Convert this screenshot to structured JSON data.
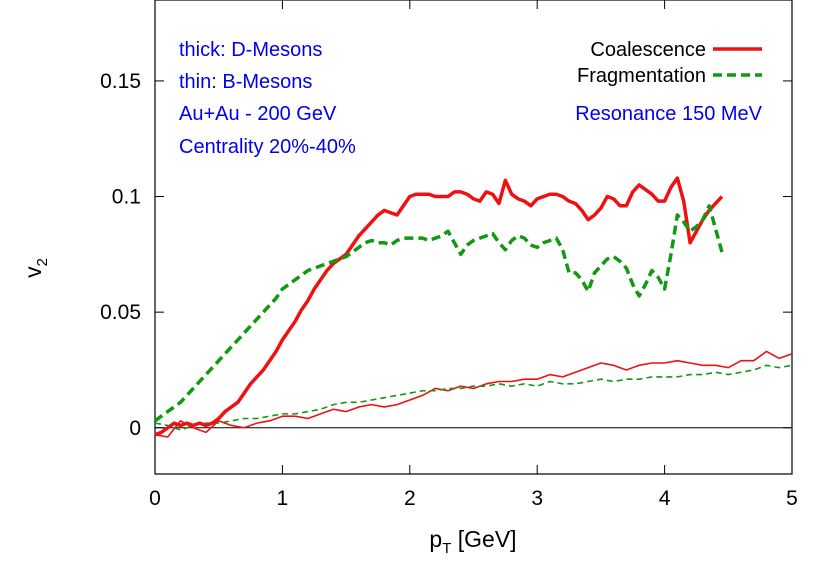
{
  "chart_data": {
    "type": "line",
    "xlabel": {
      "main": "p",
      "sub": "T",
      "unit": " [GeV]"
    },
    "ylabel": {
      "main": "v",
      "sub": "2"
    },
    "xlim": [
      0,
      5
    ],
    "ylim": [
      -0.02,
      0.185
    ],
    "x_ticks": [
      "0",
      "1",
      "2",
      "3",
      "4",
      "5"
    ],
    "y_ticks": [
      "0",
      "0.05",
      "0.1",
      "0.15"
    ],
    "x_tick_values": [
      0,
      1,
      2,
      3,
      4,
      5
    ],
    "y_tick_values": [
      0,
      0.05,
      0.1,
      0.15
    ],
    "grid": false,
    "zero_line": true,
    "legend_position": "top-right",
    "annotations": [
      "thick: D-Mesons",
      "thin: B-Mesons",
      "Au+Au - 200 GeV",
      "Centrality 20%-40%"
    ],
    "annotation_right": "Resonance 150 MeV",
    "series": [
      {
        "name": "Coalescence",
        "color": "#ee1111",
        "style": "solid",
        "weight": "thick",
        "x": [
          0.0,
          0.05,
          0.1,
          0.15,
          0.2,
          0.25,
          0.3,
          0.35,
          0.4,
          0.45,
          0.5,
          0.55,
          0.6,
          0.65,
          0.7,
          0.75,
          0.8,
          0.85,
          0.9,
          0.95,
          1.0,
          1.05,
          1.1,
          1.15,
          1.2,
          1.25,
          1.3,
          1.35,
          1.4,
          1.45,
          1.5,
          1.55,
          1.6,
          1.65,
          1.7,
          1.75,
          1.8,
          1.85,
          1.9,
          1.95,
          2.0,
          2.05,
          2.1,
          2.15,
          2.2,
          2.25,
          2.3,
          2.35,
          2.4,
          2.45,
          2.5,
          2.55,
          2.6,
          2.65,
          2.7,
          2.75,
          2.8,
          2.85,
          2.9,
          2.95,
          3.0,
          3.05,
          3.1,
          3.15,
          3.2,
          3.25,
          3.3,
          3.35,
          3.4,
          3.45,
          3.5,
          3.55,
          3.6,
          3.65,
          3.7,
          3.75,
          3.8,
          3.85,
          3.9,
          3.95,
          4.0,
          4.05,
          4.1,
          4.15,
          4.2,
          4.25,
          4.3,
          4.35,
          4.4,
          4.45
        ],
        "y": [
          -0.003,
          -0.002,
          0.0,
          0.002,
          0.001,
          0.002,
          0.001,
          0.002,
          0.001,
          0.002,
          0.004,
          0.007,
          0.009,
          0.011,
          0.015,
          0.019,
          0.022,
          0.025,
          0.029,
          0.033,
          0.038,
          0.042,
          0.046,
          0.051,
          0.055,
          0.06,
          0.064,
          0.068,
          0.071,
          0.073,
          0.075,
          0.079,
          0.083,
          0.086,
          0.089,
          0.092,
          0.094,
          0.093,
          0.092,
          0.096,
          0.1,
          0.101,
          0.101,
          0.101,
          0.1,
          0.1,
          0.1,
          0.102,
          0.102,
          0.101,
          0.099,
          0.098,
          0.102,
          0.101,
          0.097,
          0.107,
          0.101,
          0.099,
          0.098,
          0.096,
          0.099,
          0.1,
          0.101,
          0.101,
          0.1,
          0.098,
          0.097,
          0.094,
          0.09,
          0.092,
          0.095,
          0.1,
          0.099,
          0.096,
          0.096,
          0.102,
          0.105,
          0.103,
          0.101,
          0.098,
          0.098,
          0.104,
          0.108,
          0.098,
          0.08,
          0.085,
          0.09,
          0.094,
          0.097,
          0.1
        ]
      },
      {
        "name": "Fragmentation",
        "color": "#119911",
        "style": "dashed",
        "weight": "thick",
        "x": [
          0.0,
          0.05,
          0.1,
          0.15,
          0.2,
          0.25,
          0.3,
          0.35,
          0.4,
          0.45,
          0.5,
          0.55,
          0.6,
          0.65,
          0.7,
          0.75,
          0.8,
          0.85,
          0.9,
          0.95,
          1.0,
          1.05,
          1.1,
          1.15,
          1.2,
          1.25,
          1.3,
          1.35,
          1.4,
          1.45,
          1.5,
          1.55,
          1.6,
          1.65,
          1.7,
          1.75,
          1.8,
          1.85,
          1.9,
          1.95,
          2.0,
          2.05,
          2.1,
          2.15,
          2.2,
          2.25,
          2.3,
          2.35,
          2.4,
          2.45,
          2.5,
          2.55,
          2.6,
          2.65,
          2.7,
          2.75,
          2.8,
          2.85,
          2.9,
          2.95,
          3.0,
          3.05,
          3.1,
          3.15,
          3.2,
          3.25,
          3.3,
          3.35,
          3.4,
          3.45,
          3.5,
          3.55,
          3.6,
          3.65,
          3.7,
          3.75,
          3.8,
          3.85,
          3.9,
          3.95,
          4.0,
          4.05,
          4.1,
          4.15,
          4.2,
          4.25,
          4.3,
          4.35,
          4.4,
          4.45
        ],
        "y": [
          0.003,
          0.005,
          0.007,
          0.009,
          0.011,
          0.014,
          0.017,
          0.02,
          0.023,
          0.026,
          0.029,
          0.032,
          0.035,
          0.038,
          0.041,
          0.044,
          0.047,
          0.05,
          0.053,
          0.056,
          0.06,
          0.062,
          0.064,
          0.066,
          0.068,
          0.069,
          0.07,
          0.071,
          0.072,
          0.073,
          0.074,
          0.076,
          0.078,
          0.08,
          0.081,
          0.08,
          0.08,
          0.079,
          0.081,
          0.082,
          0.082,
          0.082,
          0.082,
          0.081,
          0.082,
          0.083,
          0.085,
          0.08,
          0.075,
          0.079,
          0.081,
          0.082,
          0.083,
          0.084,
          0.08,
          0.077,
          0.081,
          0.083,
          0.082,
          0.079,
          0.078,
          0.08,
          0.081,
          0.082,
          0.077,
          0.067,
          0.067,
          0.064,
          0.059,
          0.067,
          0.07,
          0.073,
          0.074,
          0.072,
          0.069,
          0.062,
          0.057,
          0.062,
          0.068,
          0.065,
          0.06,
          0.075,
          0.092,
          0.089,
          0.085,
          0.087,
          0.09,
          0.096,
          0.086,
          0.076
        ]
      },
      {
        "name": "Coalescence",
        "color": "#ee1111",
        "style": "solid",
        "weight": "thin",
        "x": [
          0.0,
          0.1,
          0.2,
          0.3,
          0.4,
          0.5,
          0.6,
          0.7,
          0.8,
          0.9,
          1.0,
          1.1,
          1.2,
          1.3,
          1.4,
          1.5,
          1.6,
          1.7,
          1.8,
          1.9,
          2.0,
          2.1,
          2.2,
          2.3,
          2.4,
          2.5,
          2.6,
          2.7,
          2.8,
          2.9,
          3.0,
          3.1,
          3.2,
          3.3,
          3.4,
          3.5,
          3.6,
          3.7,
          3.8,
          3.9,
          4.0,
          4.1,
          4.2,
          4.3,
          4.4,
          4.5,
          4.6,
          4.7,
          4.8,
          4.9,
          5.0
        ],
        "y": [
          -0.003,
          -0.004,
          0.003,
          0.0,
          -0.002,
          0.003,
          0.001,
          0.0,
          0.002,
          0.003,
          0.005,
          0.005,
          0.004,
          0.006,
          0.008,
          0.007,
          0.009,
          0.01,
          0.009,
          0.01,
          0.012,
          0.014,
          0.017,
          0.016,
          0.018,
          0.017,
          0.019,
          0.02,
          0.02,
          0.021,
          0.021,
          0.023,
          0.022,
          0.024,
          0.026,
          0.028,
          0.027,
          0.025,
          0.027,
          0.028,
          0.028,
          0.029,
          0.028,
          0.027,
          0.027,
          0.026,
          0.029,
          0.029,
          0.033,
          0.03,
          0.032
        ]
      },
      {
        "name": "Fragmentation",
        "color": "#119911",
        "style": "dashed",
        "weight": "thin",
        "x": [
          0.0,
          0.1,
          0.2,
          0.3,
          0.4,
          0.5,
          0.6,
          0.7,
          0.8,
          0.9,
          1.0,
          1.1,
          1.2,
          1.3,
          1.4,
          1.5,
          1.6,
          1.7,
          1.8,
          1.9,
          2.0,
          2.1,
          2.2,
          2.3,
          2.4,
          2.5,
          2.6,
          2.7,
          2.8,
          2.9,
          3.0,
          3.1,
          3.2,
          3.3,
          3.4,
          3.5,
          3.6,
          3.7,
          3.8,
          3.9,
          4.0,
          4.1,
          4.2,
          4.3,
          4.4,
          4.5,
          4.6,
          4.7,
          4.8,
          4.9,
          5.0
        ],
        "y": [
          0.002,
          0.001,
          -0.001,
          0.001,
          0.002,
          0.002,
          0.003,
          0.004,
          0.004,
          0.005,
          0.006,
          0.006,
          0.007,
          0.008,
          0.01,
          0.011,
          0.011,
          0.012,
          0.013,
          0.014,
          0.015,
          0.016,
          0.016,
          0.017,
          0.017,
          0.018,
          0.018,
          0.019,
          0.018,
          0.019,
          0.018,
          0.02,
          0.019,
          0.019,
          0.02,
          0.021,
          0.02,
          0.021,
          0.021,
          0.022,
          0.022,
          0.022,
          0.023,
          0.023,
          0.024,
          0.023,
          0.024,
          0.025,
          0.027,
          0.026,
          0.027
        ]
      }
    ]
  }
}
